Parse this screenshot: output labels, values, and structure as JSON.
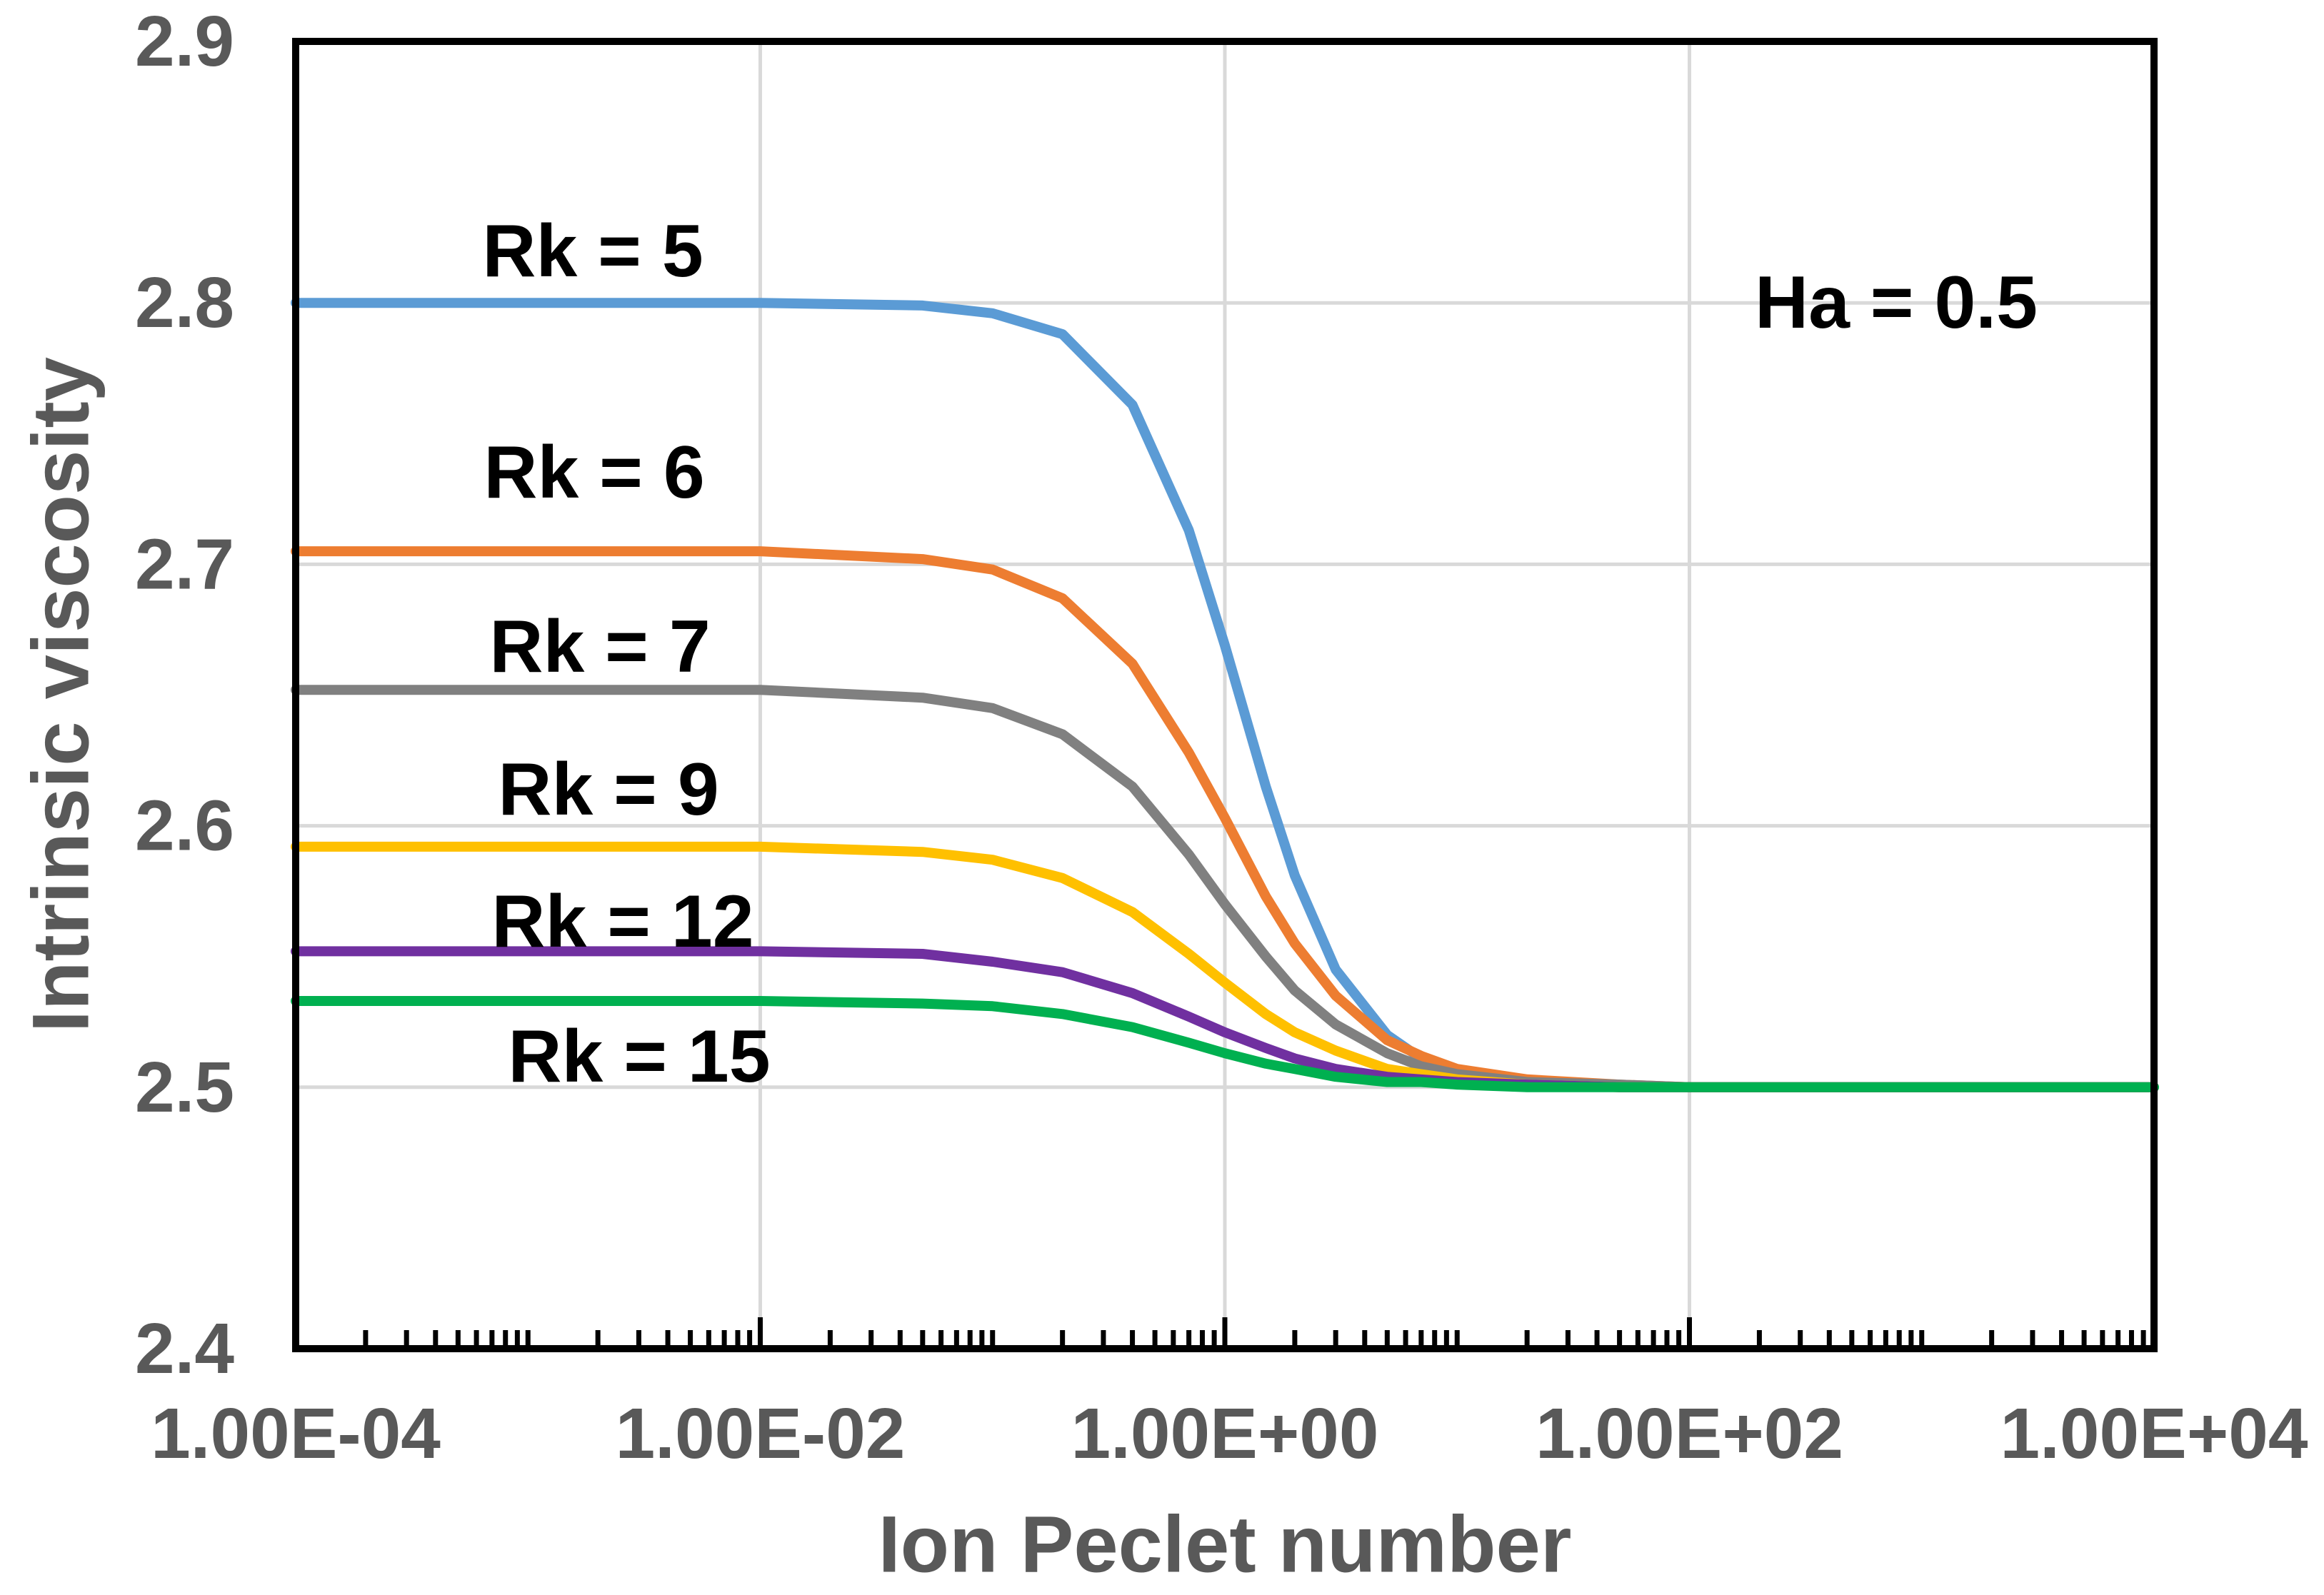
{
  "chart_data": {
    "type": "line",
    "title": "",
    "xlabel": "Ion Peclet number",
    "ylabel": "Intrinsic viscosity",
    "annotation": "Ha = 0.5",
    "x_scale": "log",
    "y_scale": "linear",
    "xlim": [
      0.0001,
      10000
    ],
    "ylim": [
      2.4,
      2.9
    ],
    "x_tick_labels": [
      "1.00E-04",
      "1.00E-02",
      "1.00E+00",
      "1.00E+02",
      "1.00E+04"
    ],
    "x_tick_values": [
      0.0001,
      0.01,
      1,
      100,
      10000
    ],
    "y_tick_labels": [
      "2.4",
      "2.5",
      "2.6",
      "2.7",
      "2.8",
      "2.9"
    ],
    "y_tick_values": [
      2.4,
      2.5,
      2.6,
      2.7,
      2.8,
      2.9
    ],
    "x_gridlines": [
      0.01,
      1,
      100
    ],
    "y_gridlines": [
      2.5,
      2.6,
      2.7,
      2.8
    ],
    "grid_on": true,
    "legend_position": "inline-labels",
    "grid_color": "#D9D9D9",
    "frame_color": "#000000",
    "axis_text_color": "#595959",
    "high_pe_limit": 2.5,
    "x": [
      0.0001,
      0.001,
      0.01,
      0.05,
      0.1,
      0.2,
      0.4,
      0.7,
      1,
      1.5,
      2,
      3,
      5,
      7,
      10,
      20,
      50,
      100,
      1000,
      10000
    ],
    "series": [
      {
        "label": "Rk = 5",
        "color": "#5B9BD5",
        "values": [
          2.8,
          2.8,
          2.8,
          2.799,
          2.796,
          2.788,
          2.761,
          2.713,
          2.669,
          2.615,
          2.581,
          2.545,
          2.52,
          2.511,
          2.506,
          2.502,
          2.5,
          2.5,
          2.5,
          2.5
        ]
      },
      {
        "label": "Rk = 6",
        "color": "#ED7D31",
        "values": [
          2.705,
          2.705,
          2.705,
          2.702,
          2.698,
          2.687,
          2.662,
          2.628,
          2.603,
          2.573,
          2.555,
          2.535,
          2.518,
          2.512,
          2.507,
          2.503,
          2.501,
          2.5,
          2.5,
          2.5
        ]
      },
      {
        "label": "Rk = 7",
        "color": "#808080",
        "values": [
          2.652,
          2.652,
          2.652,
          2.649,
          2.645,
          2.635,
          2.615,
          2.589,
          2.57,
          2.55,
          2.537,
          2.524,
          2.513,
          2.508,
          2.505,
          2.502,
          2.501,
          2.5,
          2.5,
          2.5
        ]
      },
      {
        "label": "Rk = 9",
        "color": "#FFC000",
        "values": [
          2.592,
          2.592,
          2.592,
          2.59,
          2.587,
          2.58,
          2.567,
          2.551,
          2.54,
          2.528,
          2.521,
          2.514,
          2.507,
          2.505,
          2.503,
          2.501,
          2.5,
          2.5,
          2.5,
          2.5
        ]
      },
      {
        "label": "Rk = 12",
        "color": "#7030A0",
        "values": [
          2.552,
          2.552,
          2.552,
          2.551,
          2.548,
          2.544,
          2.536,
          2.527,
          2.521,
          2.515,
          2.511,
          2.507,
          2.504,
          2.503,
          2.502,
          2.501,
          2.5,
          2.5,
          2.5,
          2.5
        ]
      },
      {
        "label": "Rk = 15",
        "color": "#00B050",
        "values": [
          2.533,
          2.533,
          2.533,
          2.532,
          2.531,
          2.528,
          2.523,
          2.517,
          2.513,
          2.509,
          2.507,
          2.504,
          2.502,
          2.502,
          2.501,
          2.5,
          2.5,
          2.5,
          2.5,
          2.5
        ]
      }
    ]
  }
}
